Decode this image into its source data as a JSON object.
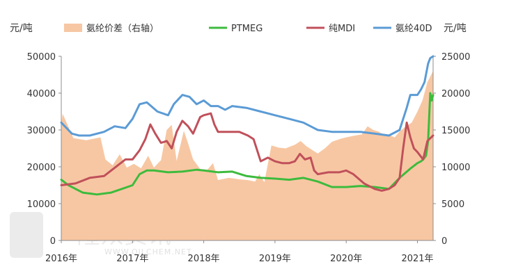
{
  "chart_data": {
    "type": "line",
    "y_unit_left": "元/吨",
    "y_unit_right": "元/吨",
    "ylim_left": [
      0,
      50000
    ],
    "ylim_right": [
      0,
      25000
    ],
    "y_ticks_left": [
      "0",
      "10000",
      "20000",
      "30000",
      "40000",
      "50000"
    ],
    "y_ticks_right": [
      "0",
      "5000",
      "10000",
      "15000",
      "20000",
      "25000"
    ],
    "x_ticks": [
      {
        "label": "2016年",
        "x": 2016.0
      },
      {
        "label": "2017年",
        "x": 2017.0
      },
      {
        "label": "2018年",
        "x": 2018.0
      },
      {
        "label": "2019年",
        "x": 2019.0
      },
      {
        "label": "2020年",
        "x": 2020.0
      },
      {
        "label": "2021年",
        "x": 2021.0
      }
    ],
    "xlim": [
      2016.0,
      2021.22
    ],
    "legend_position": "top",
    "colors": {
      "spread": "#f7c7a3",
      "ptmeg": "#3dbb3d",
      "mdi": "#c0505a",
      "spandex": "#5b9bd5"
    },
    "series": [
      {
        "name": "氨纶价差（右轴）",
        "kind": "area",
        "axis": "right",
        "x": [
          2016.0,
          2016.02,
          2016.17,
          2016.35,
          2016.55,
          2016.62,
          2016.72,
          2016.82,
          2016.92,
          2017.02,
          2017.12,
          2017.22,
          2017.3,
          2017.4,
          2017.48,
          2017.55,
          2017.62,
          2017.72,
          2017.78,
          2017.85,
          2017.95,
          2018.05,
          2018.13,
          2018.2,
          2018.35,
          2018.5,
          2018.62,
          2018.72,
          2018.78,
          2018.85,
          2018.95,
          2019.05,
          2019.15,
          2019.2,
          2019.28,
          2019.36,
          2019.44,
          2019.52,
          2019.6,
          2019.7,
          2019.8,
          2019.92,
          2020.0,
          2020.1,
          2020.22,
          2020.3,
          2020.38,
          2020.45,
          2020.52,
          2020.6,
          2020.68,
          2020.76,
          2020.84,
          2020.92,
          2021.0,
          2021.07,
          2021.14,
          2021.22
        ],
        "values": [
          15800,
          17200,
          13900,
          13600,
          14000,
          11000,
          10200,
          11700,
          9900,
          10400,
          9800,
          11500,
          9900,
          10900,
          15000,
          15700,
          10800,
          14900,
          13200,
          11000,
          9700,
          9600,
          10500,
          8200,
          8500,
          8300,
          8200,
          8000,
          9000,
          7900,
          12900,
          12600,
          12500,
          12700,
          13000,
          13500,
          12800,
          12300,
          11800,
          12500,
          13400,
          13800,
          14000,
          14200,
          14400,
          15500,
          15000,
          14800,
          14400,
          14300,
          14000,
          14900,
          15500,
          16000,
          17500,
          19000,
          21500,
          23000
        ]
      },
      {
        "name": "PTMEG",
        "kind": "line",
        "axis": "left",
        "x": [
          2016.0,
          2016.1,
          2016.3,
          2016.5,
          2016.7,
          2016.85,
          2017.0,
          2017.1,
          2017.2,
          2017.3,
          2017.5,
          2017.7,
          2017.9,
          2018.0,
          2018.2,
          2018.4,
          2018.6,
          2018.8,
          2019.0,
          2019.2,
          2019.4,
          2019.6,
          2019.8,
          2020.0,
          2020.2,
          2020.4,
          2020.6,
          2020.75,
          2020.9,
          2021.0,
          2021.05,
          2021.08,
          2021.12,
          2021.15,
          2021.18,
          2021.2,
          2021.22
        ],
        "values": [
          16500,
          15000,
          13000,
          12500,
          13000,
          14000,
          15000,
          18000,
          19000,
          19000,
          18500,
          18700,
          19200,
          19000,
          18500,
          18700,
          17500,
          17000,
          16800,
          16500,
          17000,
          16000,
          14500,
          14500,
          14800,
          14500,
          14000,
          17000,
          19500,
          21000,
          21500,
          22000,
          23000,
          27000,
          40000,
          38000,
          39500
        ]
      },
      {
        "name": "纯MDI",
        "kind": "line",
        "axis": "left",
        "x": [
          2016.0,
          2016.2,
          2016.4,
          2016.6,
          2016.8,
          2016.9,
          2017.0,
          2017.1,
          2017.18,
          2017.25,
          2017.32,
          2017.4,
          2017.48,
          2017.55,
          2017.62,
          2017.7,
          2017.78,
          2017.85,
          2017.95,
          2018.0,
          2018.1,
          2018.15,
          2018.2,
          2018.35,
          2018.5,
          2018.62,
          2018.7,
          2018.8,
          2018.9,
          2019.0,
          2019.1,
          2019.2,
          2019.28,
          2019.35,
          2019.42,
          2019.5,
          2019.55,
          2019.6,
          2019.75,
          2019.9,
          2020.0,
          2020.1,
          2020.25,
          2020.4,
          2020.5,
          2020.6,
          2020.68,
          2020.75,
          2020.8,
          2020.85,
          2020.9,
          2020.95,
          2021.0,
          2021.08,
          2021.14,
          2021.22
        ],
        "values": [
          15000,
          15500,
          17000,
          17500,
          20500,
          22000,
          22000,
          24500,
          27500,
          31500,
          29000,
          26500,
          27000,
          25000,
          29500,
          32500,
          31000,
          29000,
          33500,
          34000,
          34500,
          31500,
          29500,
          29500,
          29500,
          28500,
          27500,
          21500,
          22500,
          21500,
          21000,
          21000,
          21500,
          23500,
          22000,
          22500,
          19000,
          18000,
          18500,
          18500,
          19000,
          18000,
          15500,
          14000,
          13500,
          14000,
          15000,
          17000,
          25000,
          32000,
          28000,
          25000,
          24000,
          22000,
          27000,
          28500
        ]
      },
      {
        "name": "氨纶40D",
        "kind": "line",
        "axis": "left",
        "x": [
          2016.0,
          2016.15,
          2016.25,
          2016.4,
          2016.6,
          2016.75,
          2016.9,
          2017.0,
          2017.1,
          2017.2,
          2017.35,
          2017.5,
          2017.58,
          2017.7,
          2017.8,
          2017.9,
          2018.0,
          2018.1,
          2018.2,
          2018.3,
          2018.4,
          2018.6,
          2018.8,
          2019.0,
          2019.2,
          2019.4,
          2019.5,
          2019.6,
          2019.8,
          2020.0,
          2020.2,
          2020.4,
          2020.6,
          2020.75,
          2020.85,
          2020.9,
          2021.0,
          2021.05,
          2021.1,
          2021.15,
          2021.18,
          2021.22
        ],
        "values": [
          32000,
          29000,
          28500,
          28500,
          29500,
          31000,
          30500,
          33000,
          37000,
          37500,
          35000,
          34000,
          37000,
          39500,
          39000,
          37000,
          38000,
          36500,
          36500,
          35500,
          36500,
          36000,
          35000,
          34000,
          33000,
          32000,
          31000,
          30000,
          29500,
          29500,
          29500,
          29000,
          28500,
          30000,
          36000,
          39500,
          39500,
          41000,
          43000,
          48000,
          49500,
          50000
        ]
      }
    ]
  },
  "watermark": {
    "mark": "隆众资讯",
    "url": "WWW.OILCHEM.NET"
  }
}
